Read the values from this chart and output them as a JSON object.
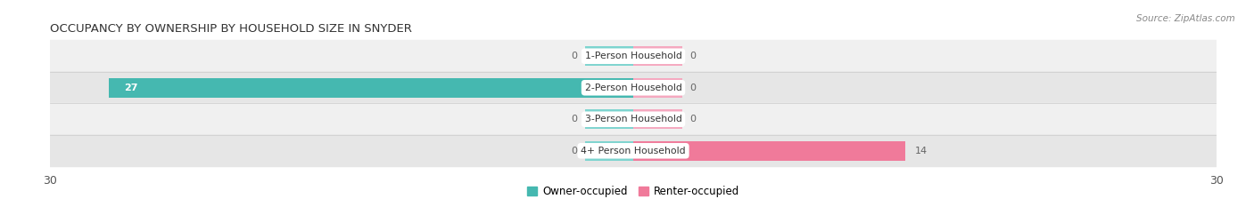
{
  "title": "OCCUPANCY BY OWNERSHIP BY HOUSEHOLD SIZE IN SNYDER",
  "source": "Source: ZipAtlas.com",
  "categories": [
    "1-Person Household",
    "2-Person Household",
    "3-Person Household",
    "4+ Person Household"
  ],
  "owner_values": [
    0,
    27,
    0,
    0
  ],
  "renter_values": [
    0,
    0,
    0,
    14
  ],
  "xlim": 30,
  "owner_color": "#45b8b0",
  "renter_color": "#f07a9a",
  "owner_color_stub": "#7dd4cf",
  "renter_color_stub": "#f5a8bf",
  "row_bg_even": "#f0f0f0",
  "row_bg_odd": "#e6e6e6",
  "title_fontsize": 9.5,
  "source_fontsize": 7.5,
  "tick_fontsize": 9,
  "stub_size": 2.5,
  "value_inside_color": "#ffffff",
  "value_outside_color": "#666666"
}
